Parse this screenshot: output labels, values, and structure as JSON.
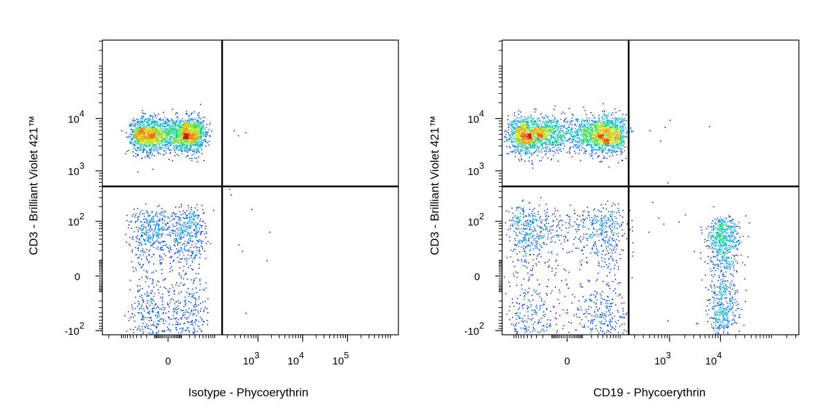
{
  "chart_data": [
    {
      "type": "scatter",
      "xlabel": "Isotype - Phycoerythrin",
      "ylabel": "CD3 - Brilliant Violet 421™",
      "x_scale": "biexponential",
      "y_scale": "biexponential",
      "x_ticks": [
        {
          "value": 0,
          "base": "0",
          "exp": ""
        },
        {
          "value": 1000,
          "base": "10",
          "exp": "3"
        },
        {
          "value": 10000,
          "base": "10",
          "exp": "4"
        },
        {
          "value": 100000,
          "base": "10",
          "exp": "5"
        }
      ],
      "y_ticks": [
        {
          "value": 10000,
          "base": "10",
          "exp": "4"
        },
        {
          "value": 1000,
          "base": "10",
          "exp": "3"
        },
        {
          "value": 100,
          "base": "10",
          "exp": "2"
        },
        {
          "value": 0,
          "base": "0",
          "exp": ""
        },
        {
          "value": -100,
          "base": "-10",
          "exp": "2"
        }
      ],
      "quadrant_gate": {
        "x": 150,
        "y": 500
      },
      "populations": [
        {
          "x_center": 0,
          "x_spread": 25,
          "y_center": 5000,
          "y_spread": 0.17,
          "count": 2200
        },
        {
          "x_center": 0,
          "x_spread": 25,
          "y_center": 20,
          "y_spread": 70,
          "count": 1300
        }
      ],
      "sparse_events": [
        [
          280,
          6000
        ],
        [
          520,
          5500
        ],
        [
          350,
          4800
        ],
        [
          240,
          350
        ],
        [
          700,
          180
        ],
        [
          360,
          30
        ],
        [
          430,
          20
        ],
        [
          1550,
          10
        ],
        [
          1800,
          60
        ],
        [
          520,
          -40
        ],
        [
          220,
          450
        ]
      ]
    },
    {
      "type": "scatter",
      "xlabel": "CD19 - Phycoerythrin",
      "ylabel": "CD3 - Brilliant Violet 421™",
      "x_scale": "biexponential",
      "y_scale": "biexponential",
      "x_ticks": [
        {
          "value": 0,
          "base": "0",
          "exp": ""
        },
        {
          "value": 1000,
          "base": "10",
          "exp": "3"
        },
        {
          "value": 10000,
          "base": "10",
          "exp": "4"
        }
      ],
      "y_ticks": [
        {
          "value": 10000,
          "base": "10",
          "exp": "4"
        },
        {
          "value": 1000,
          "base": "10",
          "exp": "3"
        },
        {
          "value": 100,
          "base": "10",
          "exp": "2"
        },
        {
          "value": 0,
          "base": "0",
          "exp": ""
        },
        {
          "value": -100,
          "base": "-10",
          "exp": "2"
        }
      ],
      "quadrant_gate": {
        "x": 150,
        "y": 500
      },
      "populations": [
        {
          "x_center": 0,
          "x_spread": 55,
          "y_center": 5000,
          "y_spread": 0.18,
          "count": 2600
        },
        {
          "x_center": 0,
          "x_spread": 55,
          "y_center": 25,
          "y_spread": 75,
          "count": 1300
        },
        {
          "x_center": 11000,
          "x_spread": 0.16,
          "y_center": 10,
          "y_spread": 50,
          "count": 900
        }
      ],
      "sparse_events": [
        [
          400,
          6000
        ],
        [
          800,
          7000
        ],
        [
          650,
          3800
        ],
        [
          6000,
          7200
        ],
        [
          1000,
          9500
        ],
        [
          900,
          600
        ],
        [
          450,
          250
        ],
        [
          600,
          120
        ],
        [
          750,
          90
        ],
        [
          380,
          60
        ],
        [
          1500,
          100
        ],
        [
          2000,
          140
        ],
        [
          900,
          -60
        ],
        [
          3000,
          20
        ],
        [
          30000,
          -20
        ]
      ]
    }
  ]
}
